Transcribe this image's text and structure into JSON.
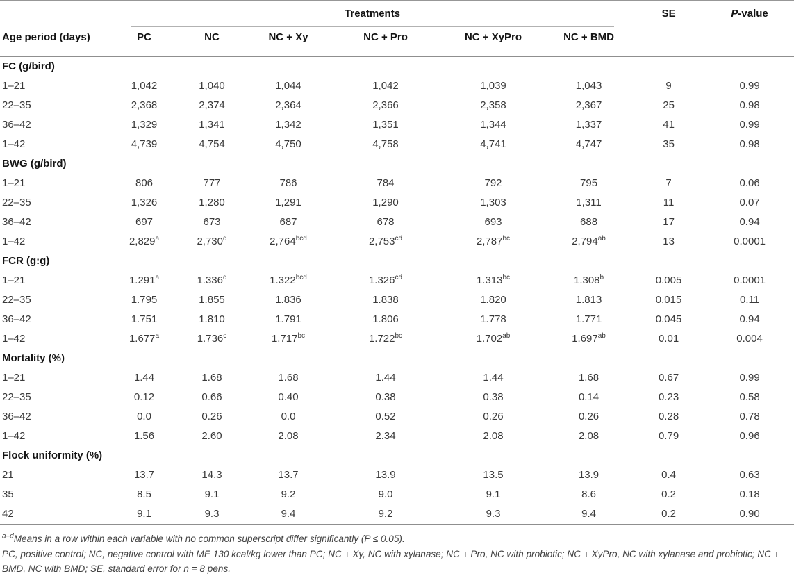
{
  "table": {
    "header": {
      "age_period_label": "Age period (days)",
      "treatments_label": "Treatments",
      "treatment_columns": [
        "PC",
        "NC",
        "NC + Xy",
        "NC + Pro",
        "NC + XyPro",
        "NC + BMD"
      ],
      "se_label": "SE",
      "p_value": {
        "italic": "P",
        "rest": "-value"
      }
    },
    "sections": [
      {
        "title": "FC (g/bird)",
        "rows": [
          {
            "period": "1–21",
            "values": [
              "1,042",
              "1,040",
              "1,044",
              "1,042",
              "1,039",
              "1,043"
            ],
            "se": "9",
            "p": "0.99"
          },
          {
            "period": "22–35",
            "values": [
              "2,368",
              "2,374",
              "2,364",
              "2,366",
              "2,358",
              "2,367"
            ],
            "se": "25",
            "p": "0.98"
          },
          {
            "period": "36–42",
            "values": [
              "1,329",
              "1,341",
              "1,342",
              "1,351",
              "1,344",
              "1,337"
            ],
            "se": "41",
            "p": "0.99"
          },
          {
            "period": "1–42",
            "values": [
              "4,739",
              "4,754",
              "4,750",
              "4,758",
              "4,741",
              "4,747"
            ],
            "se": "35",
            "p": "0.98"
          }
        ]
      },
      {
        "title": "BWG (g/bird)",
        "rows": [
          {
            "period": "1–21",
            "values": [
              "806",
              "777",
              "786",
              "784",
              "792",
              "795"
            ],
            "se": "7",
            "p": "0.06"
          },
          {
            "period": "22–35",
            "values": [
              "1,326",
              "1,280",
              "1,291",
              "1,290",
              "1,303",
              "1,311"
            ],
            "se": "11",
            "p": "0.07"
          },
          {
            "period": "36–42",
            "values": [
              "697",
              "673",
              "687",
              "678",
              "693",
              "688"
            ],
            "se": "17",
            "p": "0.94"
          },
          {
            "period": "1–42",
            "values": [
              "2,829",
              "2,730",
              "2,764",
              "2,753",
              "2,787",
              "2,794"
            ],
            "sups": [
              "a",
              "d",
              "bcd",
              "cd",
              "bc",
              "ab"
            ],
            "se": "13",
            "p": "0.0001"
          }
        ]
      },
      {
        "title": "FCR (g:g)",
        "rows": [
          {
            "period": "1–21",
            "values": [
              "1.291",
              "1.336",
              "1.322",
              "1.326",
              "1.313",
              "1.308"
            ],
            "sups": [
              "a",
              "d",
              "bcd",
              "cd",
              "bc",
              "b"
            ],
            "se": "0.005",
            "p": "0.0001"
          },
          {
            "period": "22–35",
            "values": [
              "1.795",
              "1.855",
              "1.836",
              "1.838",
              "1.820",
              "1.813"
            ],
            "se": "0.015",
            "p": "0.11"
          },
          {
            "period": "36–42",
            "values": [
              "1.751",
              "1.810",
              "1.791",
              "1.806",
              "1.778",
              "1.771"
            ],
            "se": "0.045",
            "p": "0.94"
          },
          {
            "period": "1–42",
            "values": [
              "1.677",
              "1.736",
              "1.717",
              "1.722",
              "1.702",
              "1.697"
            ],
            "sups": [
              "a",
              "c",
              "bc",
              "bc",
              "ab",
              "ab"
            ],
            "se": "0.01",
            "p": "0.004"
          }
        ]
      },
      {
        "title": "Mortality (%)",
        "rows": [
          {
            "period": "1–21",
            "values": [
              "1.44",
              "1.68",
              "1.68",
              "1.44",
              "1.44",
              "1.68"
            ],
            "se": "0.67",
            "p": "0.99"
          },
          {
            "period": "22–35",
            "values": [
              "0.12",
              "0.66",
              "0.40",
              "0.38",
              "0.38",
              "0.14"
            ],
            "se": "0.23",
            "p": "0.58"
          },
          {
            "period": "36–42",
            "values": [
              "0.0",
              "0.26",
              "0.0",
              "0.52",
              "0.26",
              "0.26"
            ],
            "se": "0.28",
            "p": "0.78"
          },
          {
            "period": "1–42",
            "values": [
              "1.56",
              "2.60",
              "2.08",
              "2.34",
              "2.08",
              "2.08"
            ],
            "se": "0.79",
            "p": "0.96"
          }
        ]
      },
      {
        "title": "Flock uniformity (%)",
        "rows": [
          {
            "period": "21",
            "values": [
              "13.7",
              "14.3",
              "13.7",
              "13.9",
              "13.5",
              "13.9"
            ],
            "se": "0.4",
            "p": "0.63"
          },
          {
            "period": "35",
            "values": [
              "8.5",
              "9.1",
              "9.2",
              "9.0",
              "9.1",
              "8.6"
            ],
            "se": "0.2",
            "p": "0.18"
          },
          {
            "period": "42",
            "values": [
              "9.1",
              "9.3",
              "9.4",
              "9.2",
              "9.3",
              "9.4"
            ],
            "se": "0.2",
            "p": "0.90"
          }
        ]
      }
    ]
  },
  "footnotes": {
    "sig": {
      "sup": "a–d",
      "text": "Means in a row within each variable with no common superscript differ significantly (P ≤ 0.05)."
    },
    "abbrev": "PC, positive control; NC, negative control with ME 130 kcal/kg lower than PC; NC + Xy, NC with xylanase; NC + Pro, NC with probiotic; NC + XyPro, NC with xylanase and probiotic; NC + BMD, NC with BMD; SE, standard error for n = 8 pens."
  }
}
